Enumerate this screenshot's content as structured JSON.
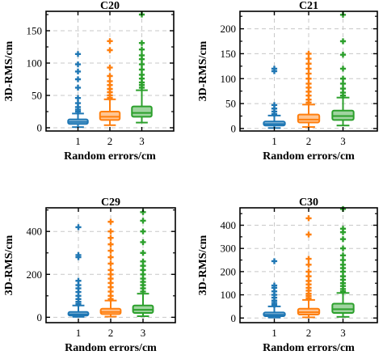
{
  "colors": [
    "#1f77b4",
    "#ff7f0e",
    "#2ca02c"
  ],
  "chart_data": [
    {
      "type": "box",
      "title": "C20",
      "xlabel": "Random errors/cm",
      "ylabel": "3D-RMS/cm",
      "categories": [
        "1",
        "2",
        "3"
      ],
      "ylim": [
        -5,
        180
      ],
      "yticks": [
        0,
        50,
        100,
        150
      ],
      "minor_yticks": [
        25,
        75,
        125,
        175
      ],
      "grid": "dashed",
      "boxes": [
        {
          "whislo": 1,
          "q1": 6,
          "med": 9,
          "q3": 13,
          "whishi": 22,
          "fliers": [
            25,
            28,
            32,
            38,
            46,
            62,
            75,
            87,
            98,
            114
          ]
        },
        {
          "whislo": 4,
          "q1": 12,
          "med": 17,
          "q3": 25,
          "whishi": 44,
          "fliers": [
            46,
            50,
            55,
            60,
            66,
            72,
            80,
            93,
            120,
            134
          ]
        },
        {
          "whislo": 8,
          "q1": 17,
          "med": 23,
          "q3": 33,
          "whishi": 58,
          "fliers": [
            62,
            66,
            70,
            76,
            82,
            90,
            98,
            106,
            112,
            121,
            131,
            175
          ]
        }
      ]
    },
    {
      "type": "box",
      "title": "C21",
      "xlabel": "Random errors/cm",
      "ylabel": "3D-RMS/cm",
      "categories": [
        "1",
        "2",
        "3"
      ],
      "ylim": [
        -5,
        235
      ],
      "yticks": [
        0,
        50,
        100,
        150,
        200
      ],
      "minor_yticks": [
        25,
        75,
        125,
        175,
        225
      ],
      "grid": "dashed",
      "boxes": [
        {
          "whislo": 1,
          "q1": 6,
          "med": 9,
          "q3": 14,
          "whishi": 26,
          "fliers": [
            29,
            34,
            40,
            47,
            115,
            120
          ]
        },
        {
          "whislo": 3,
          "q1": 12,
          "med": 18,
          "q3": 28,
          "whishi": 48,
          "fliers": [
            52,
            58,
            66,
            74,
            82,
            90,
            100,
            110,
            120,
            130,
            140,
            150
          ]
        },
        {
          "whislo": 6,
          "q1": 17,
          "med": 25,
          "q3": 36,
          "whishi": 62,
          "fliers": [
            66,
            72,
            80,
            90,
            100,
            120,
            148,
            175,
            228
          ]
        }
      ]
    },
    {
      "type": "box",
      "title": "C29",
      "xlabel": "Random errors/cm",
      "ylabel": "3D-RMS/cm",
      "categories": [
        "1",
        "2",
        "3"
      ],
      "ylim": [
        -25,
        510
      ],
      "yticks": [
        0,
        200,
        400
      ],
      "minor_yticks": [
        100,
        300,
        500
      ],
      "grid": "dashed",
      "boxes": [
        {
          "whislo": 2,
          "q1": 8,
          "med": 14,
          "q3": 25,
          "whishi": 55,
          "fliers": [
            62,
            72,
            85,
            100,
            118,
            135,
            150,
            170,
            280,
            290,
            420
          ]
        },
        {
          "whislo": 3,
          "q1": 15,
          "med": 25,
          "q3": 40,
          "whishi": 78,
          "fliers": [
            85,
            100,
            120,
            140,
            160,
            180,
            200,
            220,
            250,
            280,
            310,
            340,
            370,
            400,
            445
          ]
        },
        {
          "whislo": 5,
          "q1": 20,
          "med": 35,
          "q3": 55,
          "whishi": 110,
          "fliers": [
            120,
            135,
            150,
            165,
            180,
            200,
            220,
            240,
            260,
            300,
            350,
            400,
            450,
            490
          ]
        }
      ]
    },
    {
      "type": "box",
      "title": "C30",
      "xlabel": "Random errors/cm",
      "ylabel": "3D-RMS/cm",
      "categories": [
        "1",
        "2",
        "3"
      ],
      "ylim": [
        -20,
        475
      ],
      "yticks": [
        0,
        100,
        200,
        300,
        400
      ],
      "minor_yticks": [
        50,
        150,
        250,
        350,
        450
      ],
      "grid": "dashed",
      "boxes": [
        {
          "whislo": 2,
          "q1": 8,
          "med": 14,
          "q3": 24,
          "whishi": 50,
          "fliers": [
            56,
            65,
            75,
            88,
            100,
            115,
            130,
            140,
            245
          ]
        },
        {
          "whislo": 3,
          "q1": 15,
          "med": 25,
          "q3": 40,
          "whishi": 78,
          "fliers": [
            85,
            95,
            105,
            118,
            130,
            145,
            160,
            180,
            200,
            230,
            255,
            360,
            430
          ]
        },
        {
          "whislo": 5,
          "q1": 22,
          "med": 38,
          "q3": 62,
          "whishi": 108,
          "fliers": [
            115,
            125,
            138,
            150,
            165,
            180,
            200,
            215,
            230,
            250,
            270,
            300,
            340,
            370,
            385,
            470
          ]
        }
      ]
    }
  ]
}
